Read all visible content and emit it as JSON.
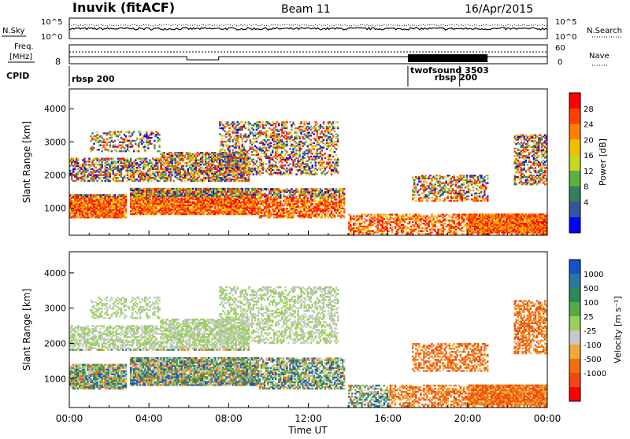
{
  "header": {
    "station": "Inuvik (fitACF)",
    "beam": "Beam 11",
    "date": "16/Apr/2015"
  },
  "top": {
    "nsky_label": "N.Sky",
    "nsearch_label": "N.Search",
    "nsky_ticks": [
      "10^5",
      "10^0"
    ],
    "nsearch_ticks": [
      "10^5",
      "10^0"
    ],
    "freq_label_1": "Freq.",
    "freq_label_2": "[MHz]",
    "freq_ticks": [
      "8"
    ],
    "nave_label": "Nave",
    "nave_ticks": [
      "60",
      "0"
    ],
    "cpid_label": "CPID",
    "cpid_entries": [
      {
        "text": "rbsp 200",
        "hour": 0.0
      },
      {
        "text": "twofsound 3503",
        "hour": 17.0
      },
      {
        "text": "rbsp 200",
        "hour": 19.6
      }
    ]
  },
  "chart_data": [
    {
      "type": "heatmap",
      "name": "power",
      "ylabel": "Slant Range [km]",
      "x_ticks": [
        "00:00",
        "04:00",
        "08:00",
        "12:00",
        "16:00",
        "20:00",
        "00:00"
      ],
      "y_ticks": [
        "1000",
        "2000",
        "3000",
        "4000"
      ],
      "xlim": [
        0,
        24
      ],
      "ylim": [
        180,
        4600
      ],
      "colorbar": {
        "label": "Power [dB]",
        "ticks": [
          "28",
          "24",
          "20",
          "16",
          "12",
          "8",
          "4"
        ],
        "colors": [
          "#ff0000",
          "#ff4000",
          "#ff8000",
          "#f0c000",
          "#c8d820",
          "#60b040",
          "#308060",
          "#305898",
          "#0000ff"
        ]
      }
    },
    {
      "type": "heatmap",
      "name": "velocity",
      "ylabel": "Slant Range [km]",
      "x_ticks": [
        "00:00",
        "04:00",
        "08:00",
        "12:00",
        "16:00",
        "20:00",
        "00:00"
      ],
      "y_ticks": [
        "1000",
        "2000",
        "3000",
        "4000"
      ],
      "xlim": [
        0,
        24
      ],
      "ylim": [
        180,
        4600
      ],
      "colorbar": {
        "label": "Velocity [m s⁻¹]",
        "ticks": [
          "1000",
          "500",
          "100",
          "25",
          "-25",
          "-100",
          "-500",
          "-1000"
        ],
        "colors": [
          "#1a50c8",
          "#2878a0",
          "#2e8858",
          "#58a848",
          "#98d058",
          "#c8c8c8",
          "#f0a838",
          "#f07010",
          "#f04810",
          "#ff0000"
        ]
      }
    }
  ],
  "xaxis": {
    "label": "Time UT"
  }
}
